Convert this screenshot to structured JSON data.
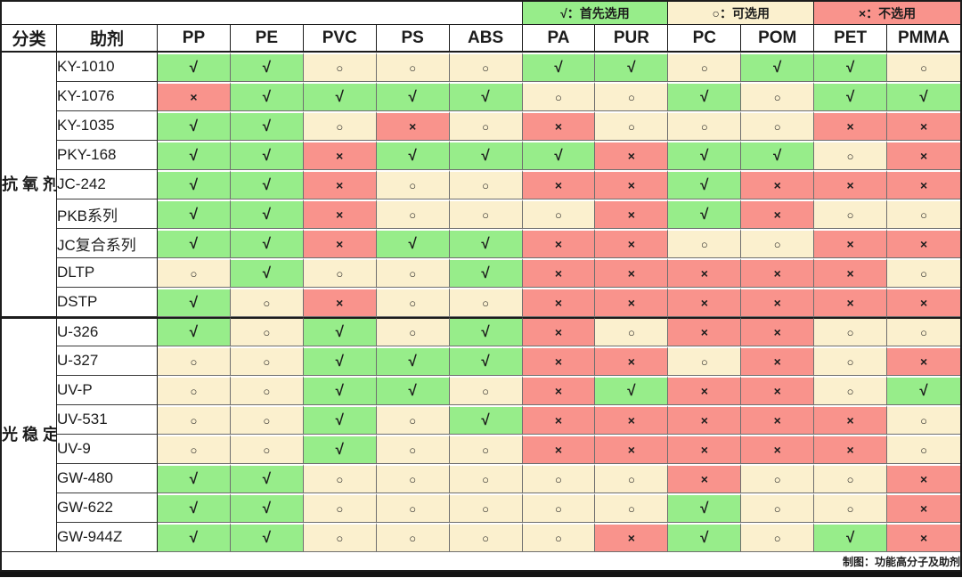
{
  "colors": {
    "preferred_bg": "#97ed8a",
    "optional_bg": "#fbf0ce",
    "avoid_bg": "#f9938c",
    "grid_dark": "#1c1c1c",
    "grid_gray": "#6f6f6f"
  },
  "chart_data": {
    "type": "table",
    "legend": [
      {
        "key": "g",
        "symbol": "√",
        "label": "首先选用",
        "text": "√：首先选用"
      },
      {
        "key": "o",
        "symbol": "○",
        "label": "可选用",
        "text": "○：可选用"
      },
      {
        "key": "r",
        "symbol": "×",
        "label": "不选用",
        "text": "×：不选用"
      }
    ],
    "symbol_of": {
      "g": "√",
      "o": "○",
      "r": "×"
    },
    "columns": {
      "category": "分类",
      "additive": "助剂",
      "plastics": [
        "PP",
        "PE",
        "PVC",
        "PS",
        "ABS",
        "PA",
        "PUR",
        "PC",
        "POM",
        "PET",
        "PMMA"
      ]
    },
    "groups": [
      {
        "name": "抗氧剂",
        "chars": [
          "抗",
          "氧",
          "剂"
        ],
        "rows": [
          {
            "additive": "KY-1010",
            "values": [
              "g",
              "g",
              "o",
              "o",
              "o",
              "g",
              "g",
              "o",
              "g",
              "g",
              "o"
            ]
          },
          {
            "additive": "KY-1076",
            "values": [
              "r",
              "g",
              "g",
              "g",
              "g",
              "o",
              "o",
              "g",
              "o",
              "g",
              "g"
            ]
          },
          {
            "additive": "KY-1035",
            "values": [
              "g",
              "g",
              "o",
              "r",
              "o",
              "r",
              "o",
              "o",
              "o",
              "r",
              "r"
            ]
          },
          {
            "additive": "PKY-168",
            "values": [
              "g",
              "g",
              "r",
              "g",
              "g",
              "g",
              "r",
              "g",
              "g",
              "o",
              "r"
            ]
          },
          {
            "additive": "JC-242",
            "values": [
              "g",
              "g",
              "r",
              "o",
              "o",
              "r",
              "r",
              "g",
              "r",
              "r",
              "r"
            ]
          },
          {
            "additive": "PKB系列",
            "values": [
              "g",
              "g",
              "r",
              "o",
              "o",
              "o",
              "r",
              "g",
              "r",
              "o",
              "o"
            ]
          },
          {
            "additive": "JC复合系列",
            "values": [
              "g",
              "g",
              "r",
              "g",
              "g",
              "r",
              "r",
              "o",
              "o",
              "r",
              "r"
            ]
          },
          {
            "additive": "DLTP",
            "values": [
              "o",
              "g",
              "o",
              "o",
              "g",
              "r",
              "r",
              "r",
              "r",
              "r",
              "o"
            ]
          },
          {
            "additive": "DSTP",
            "values": [
              "g",
              "o",
              "r",
              "o",
              "o",
              "r",
              "r",
              "r",
              "r",
              "r",
              "r"
            ]
          }
        ]
      },
      {
        "name": "光稳定剂",
        "chars": [
          "光",
          "稳",
          "定",
          "剂"
        ],
        "rows": [
          {
            "additive": "U-326",
            "values": [
              "g",
              "o",
              "g",
              "o",
              "g",
              "r",
              "o",
              "r",
              "r",
              "o",
              "o"
            ]
          },
          {
            "additive": "U-327",
            "values": [
              "o",
              "o",
              "g",
              "g",
              "g",
              "r",
              "r",
              "o",
              "r",
              "o",
              "r"
            ]
          },
          {
            "additive": "UV-P",
            "values": [
              "o",
              "o",
              "g",
              "g",
              "o",
              "r",
              "g",
              "r",
              "r",
              "o",
              "g"
            ]
          },
          {
            "additive": "UV-531",
            "values": [
              "o",
              "o",
              "g",
              "o",
              "g",
              "r",
              "r",
              "r",
              "r",
              "r",
              "o"
            ]
          },
          {
            "additive": "UV-9",
            "values": [
              "o",
              "o",
              "g",
              "o",
              "o",
              "r",
              "r",
              "r",
              "r",
              "r",
              "o"
            ]
          },
          {
            "additive": "GW-480",
            "values": [
              "g",
              "g",
              "o",
              "o",
              "o",
              "o",
              "o",
              "r",
              "o",
              "o",
              "r"
            ]
          },
          {
            "additive": "GW-622",
            "values": [
              "g",
              "g",
              "o",
              "o",
              "o",
              "o",
              "o",
              "g",
              "o",
              "o",
              "r"
            ]
          },
          {
            "additive": "GW-944Z",
            "values": [
              "g",
              "g",
              "o",
              "o",
              "o",
              "o",
              "r",
              "g",
              "o",
              "g",
              "r"
            ]
          }
        ]
      }
    ],
    "footer_credit": "制图：功能高分子及助剂"
  }
}
